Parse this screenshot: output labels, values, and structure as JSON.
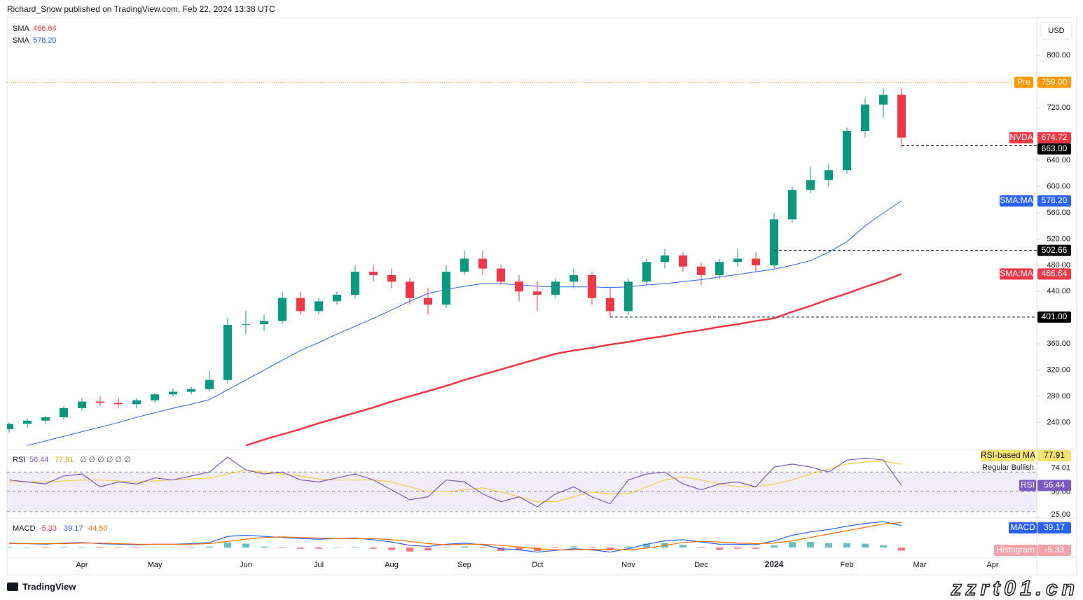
{
  "header": {
    "byline": "Richard_Snow published on TradingView.com, Feb 22, 2024 13:38 UTC",
    "currency": "USD",
    "brand": "TradingView",
    "watermark": "zzrt01.cn"
  },
  "chart_data": [
    {
      "type": "candlestick",
      "categories": [
        null,
        null,
        null,
        null,
        "Apr",
        null,
        null,
        null,
        "May",
        null,
        null,
        null,
        null,
        "Jun",
        null,
        null,
        null,
        "Jul",
        null,
        null,
        null,
        "Aug",
        null,
        null,
        null,
        "Sep",
        null,
        null,
        null,
        "Oct",
        null,
        null,
        null,
        null,
        "Nov",
        null,
        null,
        null,
        "Dec",
        null,
        null,
        null,
        "2024",
        null,
        null,
        null,
        "Feb",
        null,
        null,
        null,
        "Mar",
        null,
        null,
        null,
        "Apr",
        null
      ],
      "open": [
        230,
        238,
        243,
        248,
        262,
        272,
        270,
        268,
        274,
        283,
        287,
        291,
        305,
        389,
        390,
        395,
        430,
        410,
        425,
        435,
        470,
        465,
        455,
        430,
        420,
        470,
        490,
        475,
        455,
        440,
        435,
        455,
        465,
        430,
        410,
        455,
        485,
        495,
        478,
        465,
        485,
        490,
        480,
        550,
        595,
        610,
        625,
        685,
        725,
        740,
        null,
        null,
        null,
        null,
        null,
        null
      ],
      "high": [
        240,
        246,
        250,
        265,
        278,
        280,
        278,
        277,
        285,
        292,
        295,
        320,
        400,
        410,
        405,
        440,
        440,
        430,
        440,
        480,
        480,
        475,
        460,
        445,
        480,
        502,
        502,
        480,
        465,
        455,
        460,
        475,
        470,
        445,
        460,
        490,
        505,
        500,
        485,
        490,
        505,
        500,
        560,
        600,
        630,
        635,
        690,
        735,
        750,
        750,
        null,
        null,
        null,
        null,
        null,
        null
      ],
      "low": [
        225,
        232,
        238,
        245,
        258,
        265,
        262,
        262,
        270,
        280,
        283,
        288,
        300,
        375,
        380,
        390,
        405,
        405,
        420,
        430,
        455,
        445,
        420,
        405,
        415,
        465,
        465,
        450,
        425,
        410,
        430,
        445,
        420,
        401,
        405,
        450,
        475,
        470,
        450,
        460,
        478,
        470,
        475,
        545,
        590,
        600,
        620,
        675,
        705,
        660,
        null,
        null,
        null,
        null,
        null,
        null
      ],
      "close": [
        238,
        243,
        248,
        262,
        272,
        270,
        268,
        274,
        283,
        287,
        291,
        305,
        389,
        390,
        395,
        430,
        410,
        425,
        435,
        470,
        465,
        455,
        430,
        420,
        470,
        490,
        475,
        455,
        440,
        435,
        455,
        465,
        430,
        410,
        455,
        485,
        495,
        478,
        465,
        485,
        490,
        480,
        550,
        595,
        610,
        625,
        685,
        725,
        740,
        674.72,
        null,
        null,
        null,
        null,
        null,
        null
      ],
      "up_color": "#089981",
      "down_color": "#f23645",
      "series": [
        {
          "name": "SMA",
          "legend_label": "466.64",
          "color": "#f23645",
          "width": 2.5,
          "values": [
            null,
            null,
            null,
            null,
            null,
            null,
            null,
            null,
            null,
            null,
            null,
            null,
            null,
            205,
            214,
            222,
            230,
            239,
            247,
            255,
            263,
            272,
            280,
            288,
            296,
            305,
            313,
            321,
            329,
            337,
            345,
            350,
            354,
            359,
            363,
            368,
            372,
            377,
            381,
            386,
            390,
            395,
            399,
            409,
            418,
            428,
            437,
            447,
            456,
            466.64,
            null,
            null,
            null,
            null,
            null,
            null
          ]
        },
        {
          "name": "SMA",
          "legend_label": "578.20",
          "color": "#2962ff",
          "width": 1,
          "values": [
            null,
            205,
            212,
            219,
            226,
            233,
            240,
            248,
            255,
            262,
            268,
            275,
            290,
            305,
            320,
            335,
            350,
            362,
            375,
            387,
            399,
            412,
            425,
            437,
            443,
            448,
            452,
            452,
            450,
            448,
            447,
            447,
            447,
            446,
            447,
            450,
            452,
            455,
            458,
            462,
            466,
            470,
            474,
            480,
            487,
            500,
            516,
            540,
            560,
            578.2,
            null,
            null,
            null,
            null,
            null,
            null
          ]
        }
      ],
      "ylim": [
        200,
        858
      ],
      "yticks": [
        {
          "value": 240,
          "label": "240.00"
        },
        {
          "value": 280,
          "label": "280.00"
        },
        {
          "value": 320,
          "label": "320.00"
        },
        {
          "value": 360,
          "label": "360.00"
        },
        {
          "value": 440,
          "label": "440.00"
        },
        {
          "value": 480,
          "label": "480.00"
        },
        {
          "value": 520,
          "label": "520.00"
        },
        {
          "value": 560,
          "label": "560.00"
        },
        {
          "value": 600,
          "label": "600.00"
        },
        {
          "value": 640,
          "label": "640.00"
        },
        {
          "value": 720,
          "label": "720.00"
        },
        {
          "value": 800,
          "label": "800.00"
        }
      ],
      "levels": [
        {
          "name": "Pre",
          "value": 759,
          "label": "759.00",
          "color": "#ff9800",
          "line": "dotted"
        },
        {
          "name": "NVDA",
          "value": 674.72,
          "label": "674.72",
          "color": "#f23645"
        },
        {
          "value": 663,
          "label": "663.00",
          "color": "#000000",
          "line": "dashed"
        },
        {
          "name": "SMA:MA",
          "value": 578.2,
          "label": "578.20",
          "color": "#2962ff"
        },
        {
          "value": 502.66,
          "label": "502.66",
          "color": "#000000",
          "line": "dashed"
        },
        {
          "name": "SMA:MA",
          "value": 466.64,
          "label": "466.64",
          "color": "#f23645"
        },
        {
          "value": 401,
          "label": "401.00",
          "color": "#000000",
          "line": "dashed"
        }
      ]
    },
    {
      "type": "line",
      "title": "RSI",
      "legend_extra": "∅ ∅ ∅ ∅ ∅ ∅",
      "series": [
        {
          "name": "RSI",
          "legend_label": "56.44",
          "color": "#7e57c2",
          "values": [
            62,
            60,
            58,
            66,
            68,
            55,
            60,
            58,
            64,
            62,
            66,
            70,
            85,
            72,
            68,
            70,
            62,
            60,
            64,
            68,
            62,
            52,
            42,
            45,
            62,
            60,
            48,
            40,
            45,
            35,
            48,
            55,
            45,
            38,
            62,
            68,
            70,
            58,
            52,
            58,
            60,
            55,
            75,
            78,
            75,
            70,
            82,
            84,
            82,
            56.44,
            null,
            null,
            null,
            null,
            null,
            null
          ]
        },
        {
          "name": "RSI-based MA",
          "legend_label": "77.91",
          "color": "#f7c948",
          "values": [
            60,
            60,
            60,
            61,
            62,
            62,
            61,
            60,
            61,
            62,
            63,
            64,
            68,
            72,
            70,
            68,
            66,
            63,
            62,
            62,
            62,
            60,
            55,
            50,
            50,
            52,
            54,
            50,
            45,
            40,
            40,
            45,
            50,
            48,
            48,
            55,
            62,
            65,
            62,
            58,
            55,
            55,
            58,
            62,
            68,
            73,
            78,
            80,
            81,
            77.91,
            null,
            null,
            null,
            null,
            null,
            null
          ]
        }
      ],
      "band": [
        30,
        70
      ],
      "levels": [
        70,
        50,
        30
      ],
      "ylim": [
        25,
        92
      ],
      "yticks": [
        {
          "value": 25,
          "label": "25.00"
        },
        {
          "value": 50,
          "label": "50.00"
        }
      ],
      "annotation": {
        "text": "Regular Bullish",
        "value": 74.01,
        "label": "74.01"
      }
    },
    {
      "type": "macd",
      "title": "MACD",
      "series": [
        {
          "name": "Histogram",
          "legend_label": "-5.33",
          "color": "#f23645",
          "up_color": "#26a69a",
          "values": [
            1,
            0,
            -1,
            1,
            1,
            -1,
            -1,
            -1,
            0,
            0,
            1,
            2,
            9,
            7,
            2,
            -1,
            -2,
            -2,
            0,
            1,
            -2,
            -4,
            -7,
            -5,
            1,
            2,
            -1,
            -6,
            -5,
            -6,
            -1,
            2,
            -1,
            -4,
            2,
            7,
            8,
            5,
            -1,
            -4,
            -2,
            -2,
            4,
            10,
            10,
            8,
            8,
            7,
            4,
            -5.33,
            null,
            null,
            null,
            null,
            null,
            null
          ]
        },
        {
          "name": "MACD",
          "legend_label": "39.17",
          "color": "#2962ff",
          "values": [
            8,
            7,
            6,
            8,
            9,
            7,
            6,
            5,
            6,
            6,
            7,
            9,
            20,
            22,
            20,
            18,
            16,
            15,
            16,
            17,
            14,
            10,
            4,
            2,
            6,
            8,
            5,
            -2,
            -4,
            -8,
            -5,
            -2,
            -4,
            -8,
            -2,
            6,
            12,
            14,
            10,
            6,
            6,
            5,
            12,
            22,
            28,
            32,
            38,
            43,
            46,
            39.17,
            null,
            null,
            null,
            null,
            null,
            null
          ]
        },
        {
          "legend_label": "44.50",
          "color": "#ff6d00",
          "values": [
            7,
            7,
            7,
            7,
            8,
            8,
            7,
            6,
            6,
            6,
            6,
            7,
            11,
            15,
            18,
            19,
            18,
            17,
            16,
            16,
            16,
            14,
            11,
            7,
            5,
            6,
            6,
            4,
            1,
            -2,
            -4,
            -4,
            -3,
            -4,
            -4,
            -1,
            4,
            9,
            11,
            10,
            8,
            7,
            8,
            12,
            18,
            24,
            30,
            36,
            42,
            44.5,
            null,
            null,
            null,
            null,
            null,
            null
          ]
        }
      ],
      "ylim": [
        -16,
        50
      ]
    }
  ]
}
